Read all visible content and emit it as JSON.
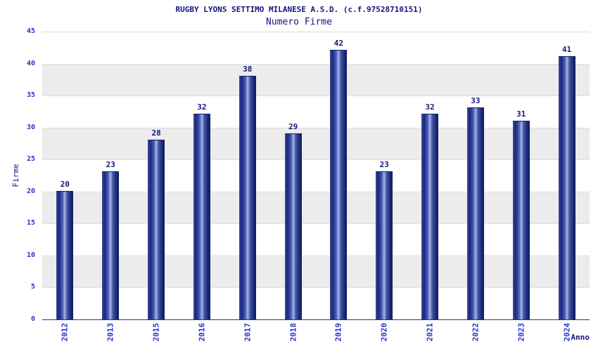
{
  "header": {
    "title": "RUGBY LYONS SETTIMO MILANESE A.S.D. (c.f.97528710151)",
    "subtitle": "Numero Firme"
  },
  "chart_data": {
    "type": "bar",
    "title": "RUGBY LYONS SETTIMO MILANESE A.S.D. (c.f.97528710151)",
    "subtitle": "Numero Firme",
    "categories": [
      "2012",
      "2013",
      "2015",
      "2016",
      "2017",
      "2018",
      "2019",
      "2020",
      "2021",
      "2022",
      "2023",
      "2024"
    ],
    "values": [
      20,
      23,
      28,
      32,
      38,
      29,
      42,
      23,
      32,
      33,
      31,
      41
    ],
    "xlabel": "Anno",
    "ylabel": "Firme",
    "ylim": [
      0,
      45
    ],
    "ytick_step": 5,
    "yticks": [
      0,
      5,
      10,
      15,
      20,
      25,
      30,
      35,
      40,
      45
    ],
    "grid": "horizontal-bands-alternating",
    "legend": "none",
    "bar_value_labels_shown": true
  },
  "colors": {
    "title_text": "#15157d",
    "tick_text": "#2536c8",
    "value_label_text": "#15157d",
    "band_gray": "#ececec",
    "band_white": "#ffffff",
    "gridline": "#dcdcdc",
    "axis_line": "#33335e",
    "bar_dark": "#1b2878",
    "bar_light": "#a6b6ee"
  }
}
